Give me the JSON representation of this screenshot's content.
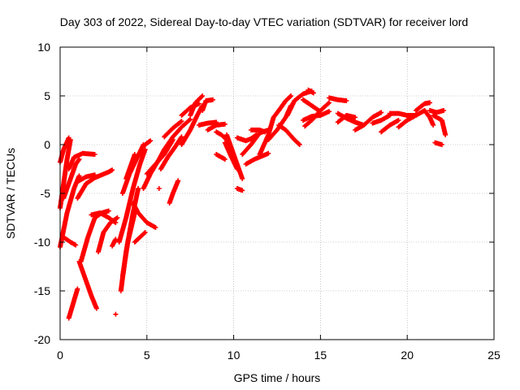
{
  "chart_data": {
    "type": "scatter",
    "title": "Day 303 of 2022, Sidereal Day-to-day VTEC variation (SDTVAR) for receiver lord",
    "xlabel": "GPS time / hours",
    "ylabel": "SDTVAR / TECUs",
    "xlim": [
      0,
      25
    ],
    "ylim": [
      -20,
      10
    ],
    "xticks": [
      0,
      5,
      10,
      15,
      20,
      25
    ],
    "yticks": [
      -20,
      -15,
      -10,
      -5,
      0,
      5,
      10
    ],
    "grid": true,
    "legend": "none",
    "marker": "plus",
    "color": "#ff0000",
    "tracks": [
      [
        [
          0.0,
          -6.5
        ],
        [
          0.2,
          -4.0
        ],
        [
          0.4,
          -1.5
        ],
        [
          0.6,
          0.5
        ]
      ],
      [
        [
          0.0,
          -10.5
        ],
        [
          0.4,
          -7.0
        ],
        [
          0.8,
          -4.5
        ],
        [
          1.1,
          -3.2
        ]
      ],
      [
        [
          0.0,
          -1.8
        ],
        [
          0.2,
          -0.5
        ],
        [
          0.5,
          0.7
        ]
      ],
      [
        [
          0.2,
          -5.5
        ],
        [
          0.6,
          -3.5
        ],
        [
          0.9,
          -2.0
        ],
        [
          1.1,
          -1.5
        ]
      ],
      [
        [
          0.5,
          -2.5
        ],
        [
          0.8,
          -1.3
        ],
        [
          1.3,
          -0.9
        ],
        [
          2.0,
          -1.0
        ]
      ],
      [
        [
          0.2,
          -9.5
        ],
        [
          0.6,
          -10.0
        ],
        [
          0.9,
          -10.3
        ]
      ],
      [
        [
          0.5,
          -17.8
        ],
        [
          0.8,
          -16.0
        ],
        [
          1.0,
          -14.8
        ]
      ],
      [
        [
          1.1,
          -12.0
        ],
        [
          1.4,
          -13.5
        ],
        [
          1.8,
          -15.5
        ],
        [
          2.1,
          -16.8
        ]
      ],
      [
        [
          1.2,
          -12.0
        ],
        [
          1.6,
          -9.5
        ],
        [
          2.0,
          -7.5
        ],
        [
          2.4,
          -7.0
        ],
        [
          2.8,
          -6.8
        ]
      ],
      [
        [
          1.0,
          -5.5
        ],
        [
          1.5,
          -4.0
        ],
        [
          2.0,
          -3.4
        ],
        [
          2.8,
          -2.8
        ],
        [
          3.0,
          -2.6
        ]
      ],
      [
        [
          1.0,
          -3.8
        ],
        [
          1.5,
          -3.3
        ],
        [
          2.0,
          -3.1
        ]
      ],
      [
        [
          2.2,
          -11.0
        ],
        [
          2.5,
          -9.0
        ],
        [
          2.9,
          -8.0
        ],
        [
          3.3,
          -7.5
        ]
      ],
      [
        [
          1.8,
          -7.2
        ],
        [
          2.3,
          -7.0
        ],
        [
          2.8,
          -7.5
        ],
        [
          3.2,
          -8.0
        ]
      ],
      [
        [
          3.2,
          -17.4
        ]
      ],
      [
        [
          3.0,
          -10.4
        ],
        [
          3.2,
          -9.7
        ]
      ],
      [
        [
          3.5,
          -15.0
        ],
        [
          3.8,
          -11.0
        ],
        [
          4.2,
          -7.0
        ],
        [
          4.5,
          -4.5
        ]
      ],
      [
        [
          3.6,
          -13.5
        ],
        [
          3.9,
          -10.0
        ],
        [
          4.3,
          -7.0
        ]
      ],
      [
        [
          3.4,
          -10.0
        ],
        [
          3.8,
          -7.5
        ],
        [
          4.2,
          -4.5
        ],
        [
          4.6,
          -2.0
        ],
        [
          4.9,
          -0.5
        ]
      ],
      [
        [
          3.6,
          -5.0
        ],
        [
          4.0,
          -3.0
        ],
        [
          4.4,
          -1.5
        ],
        [
          4.8,
          0.0
        ]
      ],
      [
        [
          3.8,
          -3.5
        ],
        [
          4.1,
          -2.0
        ],
        [
          4.3,
          -1.0
        ]
      ],
      [
        [
          4.2,
          -6.0
        ],
        [
          4.5,
          -7.0
        ],
        [
          5.0,
          -8.0
        ],
        [
          5.5,
          -8.5
        ]
      ],
      [
        [
          4.3,
          -10.0
        ],
        [
          4.6,
          -9.5
        ],
        [
          4.9,
          -9.0
        ]
      ],
      [
        [
          4.8,
          -4.5
        ],
        [
          5.2,
          -3.0
        ],
        [
          5.7,
          -1.5
        ],
        [
          6.0,
          -0.5
        ]
      ],
      [
        [
          5.0,
          -3.0
        ],
        [
          5.5,
          -2.0
        ],
        [
          6.0,
          -1.0
        ],
        [
          6.5,
          0.5
        ]
      ],
      [
        [
          4.9,
          0.0
        ],
        [
          5.2,
          0.4
        ]
      ],
      [
        [
          5.7,
          -4.5
        ]
      ],
      [
        [
          6.3,
          -6.0
        ],
        [
          6.5,
          -5.0
        ],
        [
          6.8,
          -3.7
        ]
      ],
      [
        [
          5.8,
          -2.5
        ],
        [
          6.2,
          -1.3
        ],
        [
          6.6,
          -0.3
        ],
        [
          7.0,
          0.8
        ]
      ],
      [
        [
          6.0,
          -0.5
        ],
        [
          6.5,
          0.8
        ],
        [
          7.0,
          1.8
        ],
        [
          7.5,
          2.6
        ]
      ],
      [
        [
          6.0,
          0.8
        ],
        [
          6.5,
          1.7
        ],
        [
          7.0,
          2.4
        ]
      ],
      [
        [
          7.0,
          0.0
        ],
        [
          7.5,
          1.5
        ],
        [
          7.9,
          3.0
        ],
        [
          8.2,
          4.0
        ]
      ],
      [
        [
          7.5,
          3.0
        ],
        [
          7.8,
          4.3
        ],
        [
          8.2,
          5.0
        ]
      ],
      [
        [
          7.0,
          3.0
        ],
        [
          7.5,
          3.8
        ],
        [
          8.0,
          4.2
        ]
      ],
      [
        [
          8.2,
          3.5
        ],
        [
          8.4,
          4.5
        ],
        [
          8.8,
          4.6
        ]
      ],
      [
        [
          8.0,
          2.0
        ],
        [
          8.5,
          2.2
        ],
        [
          9.0,
          2.3
        ]
      ],
      [
        [
          8.5,
          1.5
        ],
        [
          9.0,
          2.0
        ],
        [
          9.5,
          2.1
        ]
      ],
      [
        [
          9.0,
          1.3
        ],
        [
          9.3,
          1.0
        ],
        [
          9.6,
          0.5
        ]
      ],
      [
        [
          9.6,
          1.0
        ],
        [
          10.0,
          -1.0
        ],
        [
          10.5,
          -3.5
        ]
      ],
      [
        [
          9.5,
          0.2
        ],
        [
          9.8,
          -1.0
        ],
        [
          10.2,
          -2.5
        ]
      ],
      [
        [
          9.0,
          -1.0
        ],
        [
          9.5,
          -1.5
        ]
      ],
      [
        [
          10.2,
          -4.5
        ],
        [
          10.5,
          -4.7
        ]
      ],
      [
        [
          10.2,
          0.7
        ],
        [
          10.7,
          0.4
        ],
        [
          11.0,
          0.6
        ],
        [
          11.3,
          1.0
        ]
      ],
      [
        [
          10.5,
          -1.0
        ],
        [
          11.0,
          0.0
        ],
        [
          11.5,
          1.2
        ],
        [
          12.0,
          1.5
        ]
      ],
      [
        [
          10.7,
          -2.0
        ],
        [
          11.2,
          -1.5
        ],
        [
          11.6,
          -1.2
        ],
        [
          12.0,
          -0.9
        ]
      ],
      [
        [
          11.0,
          1.5
        ],
        [
          11.5,
          1.5
        ],
        [
          11.8,
          1.3
        ]
      ],
      [
        [
          11.5,
          -1.0
        ],
        [
          12.0,
          1.0
        ],
        [
          12.3,
          2.8
        ],
        [
          12.6,
          3.5
        ]
      ],
      [
        [
          12.0,
          0.5
        ],
        [
          12.5,
          1.5
        ],
        [
          13.0,
          2.8
        ],
        [
          13.3,
          4.0
        ]
      ],
      [
        [
          12.6,
          3.5
        ],
        [
          13.0,
          4.5
        ],
        [
          13.3,
          5.0
        ]
      ],
      [
        [
          12.6,
          2.0
        ],
        [
          13.0,
          1.5
        ],
        [
          13.5,
          0.5
        ],
        [
          13.8,
          0.0
        ]
      ],
      [
        [
          13.1,
          3.0
        ],
        [
          13.5,
          4.5
        ],
        [
          14.0,
          5.2
        ],
        [
          14.5,
          5.5
        ]
      ],
      [
        [
          14.0,
          4.6
        ],
        [
          14.5,
          4.0
        ],
        [
          14.9,
          3.5
        ]
      ],
      [
        [
          14.3,
          5.6
        ],
        [
          14.6,
          5.3
        ]
      ],
      [
        [
          14.0,
          2.5
        ],
        [
          14.5,
          2.9
        ],
        [
          15.0,
          3.0
        ],
        [
          15.5,
          3.4
        ]
      ],
      [
        [
          14.1,
          1.9
        ],
        [
          14.5,
          2.5
        ],
        [
          15.0,
          3.5
        ],
        [
          15.5,
          4.3
        ]
      ],
      [
        [
          15.5,
          4.8
        ],
        [
          16.0,
          4.6
        ],
        [
          16.5,
          4.5
        ]
      ],
      [
        [
          16.0,
          3.2
        ],
        [
          16.5,
          2.7
        ],
        [
          17.0,
          2.3
        ],
        [
          17.5,
          2.0
        ]
      ],
      [
        [
          16.0,
          2.3
        ],
        [
          16.5,
          3.0
        ],
        [
          17.0,
          2.8
        ]
      ],
      [
        [
          17.0,
          1.5
        ],
        [
          17.5,
          2.0
        ],
        [
          18.0,
          2.8
        ],
        [
          18.5,
          3.3
        ]
      ],
      [
        [
          18.0,
          2.2
        ],
        [
          18.5,
          2.5
        ],
        [
          19.0,
          3.0
        ]
      ],
      [
        [
          18.5,
          1.3
        ],
        [
          19.0,
          2.0
        ],
        [
          19.5,
          2.5
        ]
      ],
      [
        [
          19.0,
          3.2
        ],
        [
          19.5,
          3.2
        ],
        [
          20.0,
          3.0
        ],
        [
          20.5,
          3.0
        ]
      ],
      [
        [
          19.5,
          1.8
        ],
        [
          20.0,
          2.5
        ],
        [
          20.5,
          3.0
        ],
        [
          21.0,
          3.5
        ]
      ],
      [
        [
          20.5,
          3.5
        ],
        [
          21.0,
          4.2
        ],
        [
          21.3,
          4.3
        ]
      ],
      [
        [
          21.0,
          3.5
        ],
        [
          21.3,
          2.8
        ],
        [
          21.5,
          2.0
        ]
      ],
      [
        [
          21.5,
          3.0
        ],
        [
          22.0,
          2.5
        ],
        [
          22.2,
          1.0
        ]
      ],
      [
        [
          21.3,
          3.5
        ],
        [
          21.7,
          3.3
        ],
        [
          22.1,
          3.5
        ]
      ],
      [
        [
          21.6,
          0.2
        ],
        [
          22.0,
          0.0
        ]
      ]
    ]
  }
}
